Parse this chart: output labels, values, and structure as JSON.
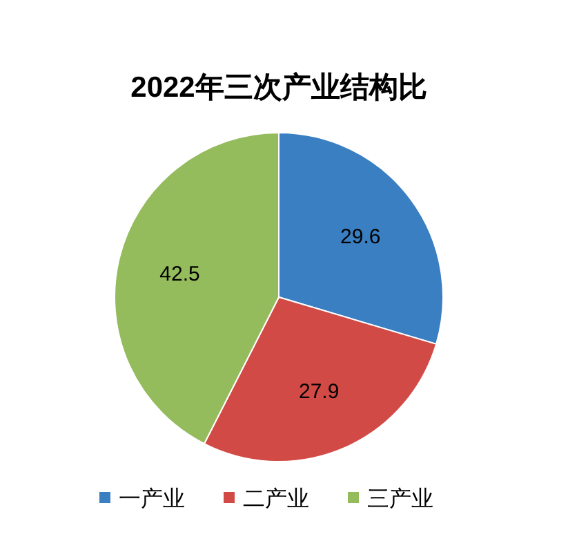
{
  "chart_data": {
    "type": "pie",
    "title": "2022年三次产业结构比",
    "categories": [
      "一产业",
      "二产业",
      "三产业"
    ],
    "values": [
      29.6,
      27.9,
      42.5
    ],
    "colors": [
      "#3a7fc1",
      "#d24a46",
      "#94bb5c"
    ],
    "data_labels": true,
    "legend": "bottom"
  }
}
